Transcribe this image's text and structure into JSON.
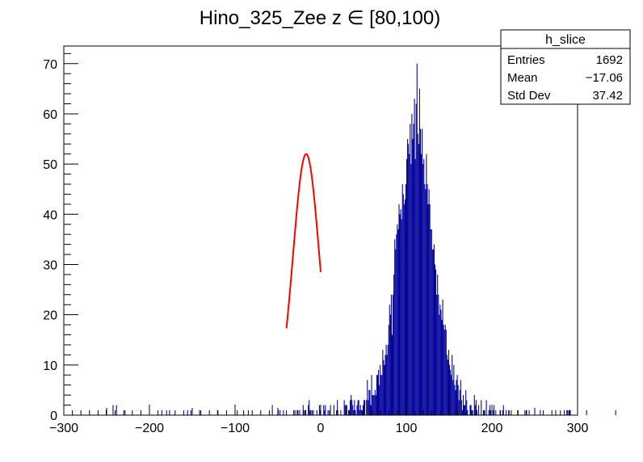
{
  "chart_data": {
    "type": "bar",
    "title": "Hino_325_Zee z  ∈ [80,100)",
    "xlabel": "",
    "ylabel": "",
    "xlim": [
      -300,
      300
    ],
    "ylim": [
      0,
      73.5
    ],
    "x_ticks": [
      -300,
      -200,
      -100,
      0,
      100,
      200,
      300
    ],
    "x_tick_labels": [
      "−300",
      "−200",
      "−100",
      "0",
      "100",
      "200",
      "300"
    ],
    "y_ticks": [
      0,
      10,
      20,
      30,
      40,
      50,
      60,
      70
    ],
    "y_tick_labels": [
      "0",
      "10",
      "20",
      "30",
      "40",
      "50",
      "60",
      "70"
    ],
    "grid": false,
    "histogram": {
      "bin_width": 1,
      "x_start": -300,
      "counts": [
        0,
        0,
        0,
        0,
        0,
        0,
        0,
        0,
        0,
        0,
        0,
        0,
        0,
        0,
        0,
        0,
        0,
        0,
        0,
        0,
        0,
        0,
        0,
        0,
        0,
        0,
        0,
        0,
        0,
        0,
        0,
        0,
        0,
        0,
        0,
        0,
        0,
        0,
        0,
        0,
        0,
        0,
        0,
        0,
        0,
        0,
        0,
        0,
        0,
        1,
        0,
        0,
        0,
        0,
        0,
        0,
        0,
        2,
        0,
        0,
        0,
        2,
        0,
        0,
        0,
        0,
        0,
        0,
        0,
        0,
        0,
        1,
        0,
        0,
        0,
        0,
        0,
        0,
        0,
        0,
        0,
        0,
        0,
        0,
        0,
        0,
        0,
        0,
        0,
        0,
        0,
        0,
        0,
        0,
        0,
        0,
        0,
        0,
        0,
        0,
        0,
        0,
        0,
        0,
        0,
        0,
        0,
        0,
        0,
        0,
        0,
        0,
        0,
        0,
        1,
        0,
        0,
        0,
        0,
        0,
        0,
        0,
        0,
        1,
        0,
        0,
        0,
        0,
        0,
        0,
        0,
        0,
        0,
        0,
        0,
        0,
        0,
        0,
        0,
        0,
        0,
        0,
        0,
        0,
        1,
        0,
        0,
        0,
        1,
        0,
        0,
        0,
        0,
        0,
        0,
        0,
        0,
        0,
        1,
        0,
        0,
        0,
        0,
        0,
        0,
        0,
        0,
        0,
        0,
        0,
        0,
        0,
        0,
        0,
        0,
        0,
        0,
        0,
        0,
        1,
        0,
        0,
        0,
        0,
        0,
        0,
        0,
        0,
        0,
        0,
        0,
        0,
        0,
        0,
        0,
        0,
        0,
        0,
        0,
        0,
        0,
        0,
        1,
        0,
        0,
        0,
        0,
        0,
        0,
        0,
        0,
        0,
        0,
        0,
        0,
        1,
        0,
        0,
        0,
        0,
        0,
        0,
        0,
        0,
        0,
        0,
        0,
        0,
        0,
        0,
        0,
        0,
        0,
        0,
        0,
        0,
        0,
        0,
        0,
        0,
        0,
        0,
        0,
        2,
        0,
        0,
        0,
        0,
        0,
        0,
        1,
        0,
        1,
        0,
        0,
        0,
        1,
        0,
        0,
        0,
        0,
        0,
        0,
        0,
        0,
        0,
        0,
        0,
        1,
        0,
        0,
        0,
        1,
        1,
        0,
        1,
        0,
        0,
        0,
        2,
        0,
        1,
        1,
        0,
        0,
        2,
        3,
        1,
        1,
        0,
        0,
        1,
        0,
        0,
        0,
        1,
        0,
        0,
        2,
        1,
        0,
        0,
        0,
        2,
        1,
        2,
        0,
        0,
        1,
        0,
        0,
        2,
        0,
        0,
        0,
        2,
        0,
        0,
        1,
        3,
        0,
        0,
        0,
        1,
        0,
        0,
        0,
        3,
        2,
        2,
        2,
        0,
        1,
        1,
        3,
        4,
        3,
        2,
        1,
        3,
        1,
        0,
        2,
        3,
        3,
        1,
        2,
        1,
        1,
        2,
        3,
        3,
        0,
        3,
        7,
        3,
        5,
        5,
        2,
        8,
        4,
        4,
        4,
        5,
        4,
        8,
        8,
        9,
        6,
        10,
        8,
        8,
        13,
        11,
        10,
        12,
        14,
        12,
        14,
        18,
        22,
        20,
        24,
        16,
        24,
        28,
        35,
        33,
        36,
        38,
        37,
        42,
        40,
        41,
        39,
        46,
        44,
        42,
        43,
        46,
        51,
        55,
        54,
        52,
        58,
        50,
        60,
        55,
        58,
        63,
        51,
        62,
        70,
        56,
        54,
        65,
        57,
        52,
        57,
        50,
        51,
        46,
        45,
        52,
        46,
        42,
        45,
        42,
        37,
        37,
        33,
        33,
        34,
        30,
        29,
        24,
        28,
        24,
        20,
        22,
        21,
        19,
        23,
        18,
        17,
        18,
        17,
        12,
        11,
        13,
        10,
        9,
        8,
        12,
        7,
        10,
        6,
        5,
        7,
        8,
        6,
        3,
        5,
        7,
        3,
        1,
        4,
        2,
        2,
        5,
        3,
        1,
        0,
        0,
        2,
        2,
        1,
        1,
        0,
        4,
        2,
        3,
        1,
        0,
        2,
        0,
        0,
        3,
        0,
        0,
        1,
        1,
        0,
        3,
        0,
        0,
        1,
        2,
        1,
        0,
        0,
        1,
        2,
        0,
        1,
        0,
        0,
        0,
        0,
        1,
        0,
        0,
        1,
        2,
        0,
        0,
        1,
        0,
        0,
        1,
        0,
        0,
        1,
        0,
        0,
        0,
        0,
        0,
        0,
        0,
        1,
        0,
        0,
        0,
        0,
        0,
        0,
        0,
        1,
        0,
        1,
        0,
        0,
        1,
        0,
        0,
        0,
        0,
        0,
        0,
        0,
        0,
        0,
        0,
        0,
        0,
        1,
        0,
        0,
        0,
        0,
        0,
        0,
        0,
        0,
        0,
        0,
        0,
        0,
        0,
        0,
        0,
        0,
        0,
        1,
        0,
        0,
        0,
        0,
        0,
        0,
        0,
        0,
        0,
        1,
        0,
        0,
        1,
        1,
        0,
        1,
        1,
        0,
        0,
        0,
        0,
        0,
        0,
        0,
        0,
        0,
        0,
        0,
        0,
        0,
        0,
        0,
        0,
        0,
        0,
        1,
        0,
        0,
        0,
        0,
        0,
        0,
        0,
        0,
        0,
        0,
        0,
        0,
        0,
        0,
        0,
        0,
        0,
        0,
        0,
        0,
        0,
        0,
        0,
        0,
        0,
        0,
        0,
        0,
        0,
        0,
        0,
        0,
        0,
        1,
        0,
        0,
        0,
        0,
        0,
        0,
        0,
        0,
        0,
        0,
        0,
        0,
        0,
        0,
        0,
        0,
        0,
        0,
        0,
        0,
        0,
        0,
        0,
        0,
        0,
        0,
        0,
        0,
        0,
        0,
        0,
        0,
        0,
        0,
        0,
        0,
        0,
        0,
        0,
        0,
        0,
        0,
        0,
        0,
        0,
        0,
        0,
        0,
        0,
        0,
        0,
        0,
        0,
        0,
        0,
        0,
        0,
        0,
        0,
        0,
        0,
        0,
        0,
        0,
        0,
        0,
        0,
        0,
        0,
        0,
        0,
        0,
        0,
        0,
        0,
        0,
        1,
        0,
        0,
        0,
        0,
        0,
        0,
        0,
        0
      ],
      "color": "#000099"
    },
    "fit": {
      "function": "gaus",
      "constant": 52,
      "mean": -17,
      "sigma": 15.5,
      "x_range": [
        -40,
        0
      ],
      "color": "#ff0000"
    },
    "stats_box": {
      "name": "h_slice",
      "rows": [
        {
          "label": "Entries",
          "value": "1692"
        },
        {
          "label": "Mean",
          "value": "−17.06"
        },
        {
          "label": "Std Dev",
          "value": "37.42"
        }
      ]
    }
  }
}
